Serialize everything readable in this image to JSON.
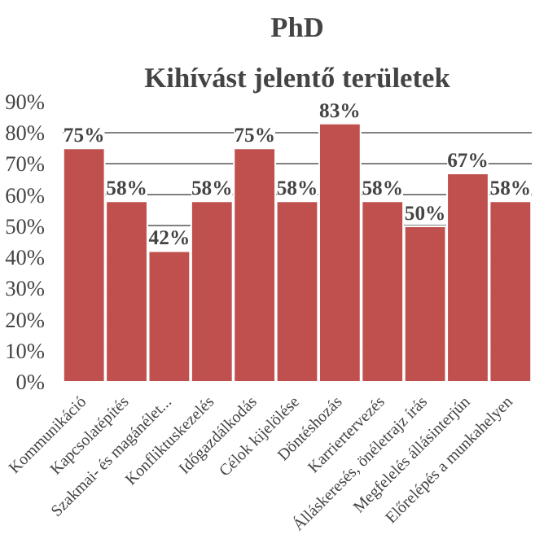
{
  "chart_data": {
    "type": "bar",
    "title": "PhD",
    "subtitle": "Kihívást jelentő területek",
    "categories": [
      "Kommunikáció",
      "Kapcsolatépítés",
      "Szakmai- és magánélet...",
      "Konfliktuskezelés",
      "Időgazdálkodás",
      "Célok kijelölése",
      "Döntéshozás",
      "Karriertervezés",
      "Álláskeresés, önéletrajz írás",
      "Megfelelés állásinterjún",
      "Előrelépés a munkahelyen"
    ],
    "values": [
      75,
      58,
      42,
      58,
      75,
      58,
      83,
      58,
      50,
      67,
      58
    ],
    "value_labels": [
      "75%",
      "58%",
      "42%",
      "58%",
      "75%",
      "58%",
      "83%",
      "58%",
      "50%",
      "67%",
      "58%"
    ],
    "color": "#c0504d",
    "ylim": [
      0,
      90
    ],
    "yticks": [
      {
        "value": 0,
        "label": "0%"
      },
      {
        "value": 10,
        "label": "10%"
      },
      {
        "value": 20,
        "label": "20%"
      },
      {
        "value": 30,
        "label": "30%"
      },
      {
        "value": 40,
        "label": "40%"
      },
      {
        "value": 50,
        "label": "50%"
      },
      {
        "value": 60,
        "label": "60%"
      },
      {
        "value": 70,
        "label": "70%"
      },
      {
        "value": 80,
        "label": "80%"
      },
      {
        "value": 90,
        "label": "90%"
      }
    ],
    "grid": "y"
  }
}
